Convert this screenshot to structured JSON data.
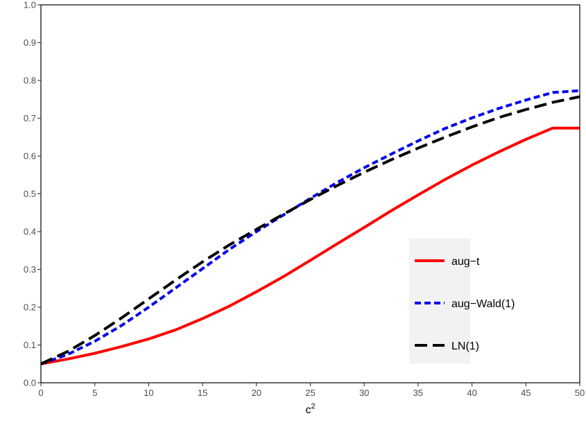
{
  "chart_data": {
    "type": "line",
    "title": "",
    "xlabel": "c",
    "xlabel_superscript": "2",
    "ylabel": "",
    "xlim": [
      0,
      50
    ],
    "ylim": [
      0,
      1
    ],
    "x_ticks": [
      "0",
      "5",
      "10",
      "15",
      "20",
      "25",
      "30",
      "35",
      "40",
      "45",
      "50"
    ],
    "y_ticks": [
      "0.0",
      "0.1",
      "0.2",
      "0.3",
      "0.4",
      "0.5",
      "0.6",
      "0.7",
      "0.8",
      "0.9",
      "1.0"
    ],
    "grid": false,
    "legend_position": "bottom-right",
    "x": [
      0,
      2.5,
      5,
      7.5,
      10,
      12.5,
      15,
      17.5,
      20,
      22.5,
      25,
      27.5,
      30,
      32.5,
      35,
      37.5,
      40,
      42.5,
      45,
      47.5,
      50
    ],
    "series": [
      {
        "name": "aug−t",
        "color": "#ff0000",
        "dash": "solid",
        "values": [
          0.05,
          0.063,
          0.078,
          0.096,
          0.116,
          0.14,
          0.17,
          0.203,
          0.241,
          0.281,
          0.324,
          0.368,
          0.411,
          0.455,
          0.497,
          0.538,
          0.576,
          0.611,
          0.644,
          0.674,
          0.674
        ]
      },
      {
        "name": "aug−Wald(1)",
        "color": "#0000ee",
        "dash": "short",
        "values": [
          0.05,
          0.075,
          0.11,
          0.152,
          0.2,
          0.251,
          0.302,
          0.353,
          0.4,
          0.444,
          0.488,
          0.53,
          0.569,
          0.605,
          0.64,
          0.673,
          0.701,
          0.726,
          0.748,
          0.768,
          0.773
        ]
      },
      {
        "name": "LN(1)",
        "color": "#000000",
        "dash": "long",
        "values": [
          0.05,
          0.083,
          0.125,
          0.172,
          0.222,
          0.272,
          0.32,
          0.365,
          0.406,
          0.446,
          0.485,
          0.522,
          0.557,
          0.59,
          0.621,
          0.65,
          0.677,
          0.702,
          0.723,
          0.742,
          0.757
        ]
      }
    ]
  }
}
